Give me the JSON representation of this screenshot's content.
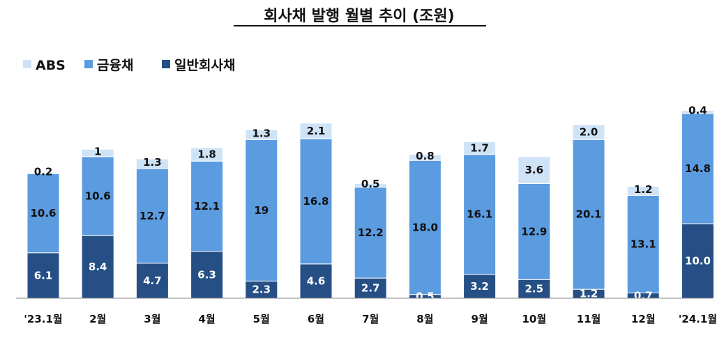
{
  "chart_data": {
    "type": "bar",
    "stacked": true,
    "title": "회사채 발행 월별 추이 (조원)",
    "categories": [
      "'23.1월",
      "2월",
      "3월",
      "4월",
      "5월",
      "6월",
      "7월",
      "8월",
      "9월",
      "10월",
      "11월",
      "12월",
      "'24.1월"
    ],
    "series": [
      {
        "name": "일반회사채",
        "color": "#254F85",
        "label_color": "#ffffff",
        "values": [
          6.1,
          8.4,
          4.7,
          6.3,
          2.3,
          4.6,
          2.7,
          0.5,
          3.2,
          2.5,
          1.2,
          0.7,
          10.0
        ],
        "labels": [
          "6.1",
          "8.4",
          "4.7",
          "6.3",
          "2.3",
          "4.6",
          "2.7",
          "0.5",
          "3.2",
          "2.5",
          "1.2",
          "0.7",
          "10.0"
        ]
      },
      {
        "name": "금융채",
        "color": "#5B9BE0",
        "label_color": "#111111",
        "values": [
          10.6,
          10.6,
          12.7,
          12.1,
          19,
          16.8,
          12.2,
          18.0,
          16.1,
          12.9,
          20.1,
          13.1,
          14.8
        ],
        "labels": [
          "10.6",
          "10.6",
          "12.7",
          "12.1",
          "19",
          "16.8",
          "12.2",
          "18.0",
          "16.1",
          "12.9",
          "20.1",
          "13.1",
          "14.8"
        ]
      },
      {
        "name": "ABS",
        "color": "#CFE3F7",
        "label_color": "#111111",
        "values": [
          0.2,
          1,
          1.3,
          1.8,
          1.3,
          2.1,
          0.5,
          0.8,
          1.7,
          3.6,
          2.0,
          1.2,
          0.4
        ],
        "labels": [
          "0.2",
          "1",
          "1.3",
          "1.8",
          "1.3",
          "2.1",
          "0.5",
          "0.8",
          "1.7",
          "3.6",
          "2.0",
          "1.2",
          "0.4"
        ]
      }
    ],
    "legend_order": [
      "ABS",
      "금융채",
      "일반회사채"
    ],
    "legend_placement": "top-left",
    "ylim": [
      0,
      26
    ],
    "grid": false
  }
}
